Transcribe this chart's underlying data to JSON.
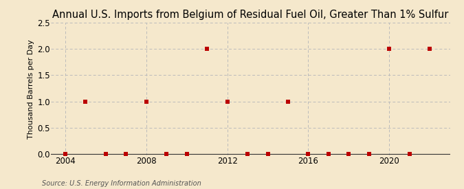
{
  "title": "Annual U.S. Imports from Belgium of Residual Fuel Oil, Greater Than 1% Sulfur",
  "ylabel": "Thousand Barrels per Day",
  "source": "Source: U.S. Energy Information Administration",
  "background_color": "#f5e8cc",
  "data": {
    "2004": 0.0,
    "2005": 1.0,
    "2006": 0.0,
    "2007": 0.0,
    "2008": 1.0,
    "2009": 0.0,
    "2010": 0.0,
    "2011": 2.0,
    "2012": 1.0,
    "2013": 0.0,
    "2014": 0.0,
    "2015": 1.0,
    "2016": 0.0,
    "2017": 0.0,
    "2018": 0.0,
    "2019": 0.0,
    "2020": 2.0,
    "2021": 0.0,
    "2022": 2.0
  },
  "marker_color": "#bb0000",
  "marker_size": 16,
  "xlim": [
    2003.3,
    2023.0
  ],
  "ylim": [
    -0.02,
    2.5
  ],
  "yticks": [
    0.0,
    0.5,
    1.0,
    1.5,
    2.0,
    2.5
  ],
  "xticks": [
    2004,
    2008,
    2012,
    2016,
    2020
  ],
  "vgrid_years": [
    2004,
    2008,
    2012,
    2016,
    2020
  ],
  "title_fontsize": 10.5,
  "ylabel_fontsize": 8,
  "tick_fontsize": 8.5,
  "source_fontsize": 7
}
